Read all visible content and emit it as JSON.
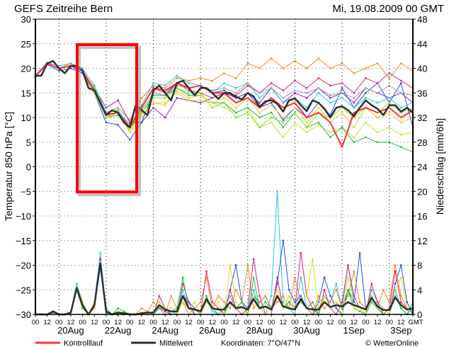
{
  "header": {
    "title": "GEFS  Zeitreihe  Bern",
    "run": "Mi, 19.08.2009  00  GMT"
  },
  "legend": {
    "control": "Kontrolllauf",
    "mean": "Mittelwert",
    "coords": "Koordinaten:  7°O/47°N",
    "credit": "© WetterOnline"
  },
  "colors": {
    "control": "#ff3030",
    "mean": "#303030",
    "highlight": "#ff0000"
  },
  "chart_data": {
    "type": "line",
    "title": "GEFS Zeitreihe Bern",
    "ylabel": "Temperatur 850 hPa [°C]",
    "y2label": "Niederschlag [mm/6h]",
    "ylim": [
      -30,
      30
    ],
    "y2lim": [
      0,
      48
    ],
    "yticks": [
      "30",
      "25",
      "20",
      "15",
      "10",
      "5",
      "0",
      "-5",
      "-10",
      "-15",
      "-20",
      "-25",
      "-30"
    ],
    "y2ticks": [
      "48",
      "44",
      "40",
      "36",
      "32",
      "28",
      "24",
      "20",
      "16",
      "12",
      "8",
      "4",
      "0"
    ],
    "x_hours_range": [
      0,
      384
    ],
    "xtick_labels": [
      "00",
      "12",
      "00",
      "12",
      "00",
      "12",
      "00",
      "12",
      "00",
      "12",
      "00",
      "12",
      "00",
      "12",
      "00",
      "12",
      "00",
      "12",
      "00",
      "12",
      "00",
      "12",
      "00",
      "12",
      "00",
      "12",
      "00",
      "12",
      "00",
      "12",
      "00",
      "12",
      "GMT"
    ],
    "date_labels": [
      {
        "label": "20Aug",
        "hour": 36
      },
      {
        "label": "22Aug",
        "hour": 84
      },
      {
        "label": "24Aug",
        "hour": 132
      },
      {
        "label": "26Aug",
        "hour": 180
      },
      {
        "label": "28Aug",
        "hour": 228
      },
      {
        "label": "30Aug",
        "hour": 276
      },
      {
        "label": "1Sep",
        "hour": 324
      },
      {
        "label": "3Sep",
        "hour": 372
      }
    ],
    "temp_step_hours": 12,
    "temp_members": [
      {
        "color": "#f08c20",
        "values": [
          18.5,
          21,
          20,
          21,
          19.5,
          16,
          11,
          12,
          9.5,
          14,
          16.5,
          16,
          18,
          17.5,
          18,
          17.5,
          19,
          18,
          21,
          20,
          22,
          20,
          21.5,
          20,
          22,
          20,
          21,
          19,
          20,
          21,
          18,
          21,
          19.5
        ]
      },
      {
        "color": "#9020d0",
        "values": [
          18.5,
          21,
          20,
          20.5,
          19,
          16,
          12,
          13.5,
          9,
          9,
          12,
          10,
          14,
          13.5,
          13,
          14,
          15,
          14,
          15,
          13,
          16,
          13,
          15,
          14,
          16,
          14,
          15,
          13,
          16,
          15,
          14,
          15,
          13
        ]
      },
      {
        "color": "#2050f0",
        "values": [
          18.3,
          20.8,
          19.5,
          20,
          19,
          15,
          9,
          8.5,
          5.5,
          9,
          15,
          14.5,
          17,
          16,
          16.5,
          15,
          15.5,
          14,
          15,
          12,
          13,
          9.5,
          12,
          10,
          13,
          10.5,
          16,
          12,
          15,
          17,
          13,
          17,
          8
        ]
      },
      {
        "color": "#c8e030",
        "values": [
          18.5,
          21,
          20,
          20.5,
          19.5,
          15,
          10,
          11.5,
          7,
          10,
          13,
          13,
          15,
          13.5,
          13.5,
          13,
          12,
          11,
          12,
          8,
          9,
          6,
          9,
          7,
          8.5,
          7,
          8,
          6,
          9,
          7,
          8,
          6.5,
          7
        ]
      },
      {
        "color": "#20c8e0",
        "values": [
          18.5,
          21.2,
          20.5,
          21,
          20,
          16.5,
          11,
          11.5,
          8.5,
          12.5,
          17,
          16.5,
          18.5,
          17,
          16.5,
          15,
          17,
          16,
          17,
          14,
          16,
          13,
          14,
          12,
          15,
          13,
          14,
          12,
          14,
          13,
          14,
          12,
          13
        ]
      },
      {
        "color": "#20c040",
        "values": [
          18.3,
          21,
          20,
          20.5,
          19.5,
          15.5,
          10,
          10.5,
          7.5,
          11,
          14.5,
          14.5,
          16,
          14.5,
          14.5,
          13,
          13,
          11,
          12,
          10,
          11,
          8,
          11,
          8,
          9,
          6,
          8,
          5,
          6,
          5,
          5,
          4,
          3
        ]
      },
      {
        "color": "#e02080",
        "values": [
          18.5,
          21,
          20,
          20.5,
          19.5,
          15.5,
          10.5,
          11,
          8,
          12,
          16,
          15,
          17,
          15.5,
          15,
          14,
          15,
          14.5,
          16.5,
          15,
          17,
          15.5,
          17.5,
          16,
          18,
          16.5,
          17,
          15,
          18,
          17,
          19,
          17.5,
          16
        ]
      },
      {
        "color": "#a0a0a0",
        "values": [
          18.5,
          21,
          20,
          20.5,
          19.5,
          15.5,
          10.5,
          11,
          8.5,
          11.5,
          15,
          14.5,
          16.5,
          16,
          16.5,
          15.5,
          16,
          15,
          17,
          15,
          16,
          14,
          15.5,
          15,
          16,
          14.5,
          15,
          14,
          16,
          15,
          16.5,
          15,
          14.5
        ]
      },
      {
        "color": "#80e020",
        "values": [
          18.5,
          21,
          20,
          20.5,
          19.5,
          16,
          10.5,
          11,
          8,
          11,
          14,
          14,
          16,
          15,
          15,
          12,
          13,
          10,
          11,
          8,
          10,
          9,
          11,
          8,
          11,
          10,
          12,
          10,
          12,
          11,
          13,
          11,
          12
        ]
      },
      {
        "color": "#e8d020",
        "values": [
          18.5,
          21,
          20,
          20.5,
          19.5,
          15.5,
          10,
          11,
          7.5,
          10.5,
          13,
          12.5,
          15.5,
          14,
          14.5,
          13,
          14,
          12,
          14,
          11,
          12.5,
          10,
          12,
          9,
          12,
          9,
          11,
          8,
          12,
          10,
          11,
          9,
          10
        ]
      }
    ],
    "temp_control": {
      "name": "Kontrolllauf",
      "values": [
        18.5,
        21,
        20,
        20.5,
        19.5,
        15.5,
        10.5,
        11,
        8,
        12,
        16,
        15.5,
        17,
        16,
        16.5,
        15,
        15,
        13,
        14,
        12,
        14,
        12,
        13,
        10,
        11,
        9,
        4,
        11,
        12,
        11,
        12,
        10,
        11.5
      ]
    },
    "temp_mean_step_hours": 6,
    "temp_mean": {
      "name": "Mittelwert",
      "values": [
        18.5,
        18.5,
        21,
        21.5,
        20,
        19,
        20.5,
        20.5,
        19.5,
        16,
        15.5,
        13,
        10.5,
        11.5,
        11,
        9,
        8,
        12.5,
        11.5,
        10.5,
        15.5,
        16.5,
        15,
        13.5,
        17,
        17.5,
        16,
        14.5,
        16,
        16,
        15,
        13.8,
        15,
        15,
        14.2,
        13.7,
        15,
        14.3,
        12.2,
        13.3,
        13.5,
        12.8,
        11.2,
        13.5,
        13.9,
        12.5,
        11.3,
        13.5,
        13,
        11.8,
        10,
        12,
        12.3,
        11.5,
        10.3,
        12,
        13.5,
        12.5,
        11.8,
        10.5,
        12.5,
        12.5,
        11.2,
        12,
        11
      ]
    },
    "precip_step_hours": 6,
    "precip_members": [
      {
        "color": "#20c8e0",
        "values": [
          0,
          0,
          0,
          0.5,
          0,
          0,
          0.5,
          5,
          2,
          0,
          2,
          10,
          0.5,
          0,
          0.5,
          0,
          0,
          0,
          0,
          0.5,
          0,
          2,
          1,
          0.5,
          0,
          4,
          1,
          0,
          0,
          3,
          0.5,
          0,
          1,
          3,
          1,
          2,
          0,
          4,
          1,
          0,
          3,
          20,
          2,
          1,
          0,
          6,
          1,
          0,
          1,
          3,
          2,
          5,
          1,
          8,
          2,
          1,
          0,
          4,
          2,
          1,
          0,
          3,
          1,
          0,
          1
        ]
      },
      {
        "color": "#2050f0",
        "values": [
          0,
          0,
          0,
          0.3,
          0,
          0,
          0.3,
          4,
          1,
          0,
          1.5,
          9,
          0.3,
          0,
          0,
          0,
          0,
          0,
          0,
          0,
          0,
          1,
          0.5,
          0,
          0,
          3,
          2,
          1,
          0,
          2,
          1,
          0,
          0,
          4,
          8,
          2,
          1,
          3,
          2,
          3,
          1,
          5,
          12,
          4,
          2,
          3,
          1,
          0,
          2,
          6,
          3,
          1,
          0,
          4,
          2,
          10,
          1,
          3,
          1,
          0,
          0,
          5,
          8,
          2,
          0
        ]
      },
      {
        "color": "#f08c20",
        "values": [
          0,
          0,
          0,
          0.5,
          0,
          0,
          0.3,
          4,
          1,
          0,
          1,
          8,
          0.5,
          0,
          0,
          0,
          0,
          0,
          1,
          0.5,
          2,
          1,
          0,
          3,
          1,
          2,
          0,
          1,
          2,
          6,
          1,
          3,
          2,
          1,
          4,
          2,
          8,
          1,
          2,
          3,
          1,
          2,
          3,
          1,
          6,
          2,
          1,
          0,
          3,
          1,
          2,
          4,
          1,
          3,
          7,
          2,
          1,
          3,
          1,
          4,
          2,
          8,
          3,
          1,
          0
        ]
      },
      {
        "color": "#e02080",
        "values": [
          0,
          0,
          0,
          0.5,
          0,
          0,
          0.3,
          4,
          1.5,
          0,
          1.5,
          9,
          0.5,
          0,
          0.3,
          0,
          0,
          0,
          0,
          0,
          0,
          3,
          1,
          0,
          0,
          5,
          2,
          0,
          0,
          7,
          2,
          1,
          0,
          4,
          1,
          0,
          1,
          9,
          3,
          0,
          0,
          6,
          1,
          2,
          1,
          10,
          3,
          1,
          0,
          4,
          1,
          0,
          2,
          8,
          3,
          1,
          0,
          5,
          2,
          0,
          1,
          7,
          2,
          1,
          0
        ]
      },
      {
        "color": "#20c040",
        "values": [
          0,
          0,
          0,
          0.3,
          0,
          0,
          0.3,
          4,
          1,
          0,
          2,
          8,
          1,
          0,
          1,
          0.5,
          0,
          0,
          0,
          0,
          0,
          1,
          1,
          0.5,
          1,
          6,
          1,
          1,
          0,
          3,
          1,
          0,
          0,
          2,
          1,
          2,
          0,
          6,
          1,
          2,
          1,
          3,
          1,
          2,
          1,
          2,
          1,
          2,
          0,
          3,
          1,
          2,
          1,
          4,
          1,
          0.5,
          0,
          2,
          1,
          0,
          0,
          4,
          1,
          0,
          2
        ]
      },
      {
        "color": "#d8e020",
        "values": [
          0,
          0,
          0,
          0.5,
          0,
          0,
          0.5,
          4.5,
          2,
          0,
          2,
          8.5,
          0.5,
          0,
          0.5,
          0,
          0,
          0,
          0,
          0,
          0,
          2,
          1,
          1,
          0,
          2,
          1,
          2,
          0,
          2,
          1,
          2,
          0,
          8,
          2,
          1,
          0,
          3,
          1,
          0,
          1,
          4,
          1,
          3,
          1,
          2,
          3,
          9,
          1,
          3,
          1,
          2,
          0,
          6,
          1,
          1,
          0,
          3,
          1,
          1,
          0,
          4,
          6,
          1,
          0
        ]
      }
    ],
    "precip_mean": {
      "name": "Mittelwert",
      "values": [
        0,
        0,
        0,
        0.5,
        0,
        0,
        0.3,
        4.3,
        1.5,
        0,
        1.5,
        8.3,
        0.5,
        0,
        0.3,
        0.2,
        0,
        0,
        0.2,
        0.3,
        0.3,
        1.5,
        0.8,
        0.5,
        0.5,
        3,
        1,
        0.8,
        0.5,
        2.5,
        1,
        0.8,
        0.8,
        2,
        1,
        1.2,
        0.8,
        2.5,
        1,
        1.3,
        0.8,
        3,
        1.3,
        1,
        0.8,
        2.5,
        1,
        0.8,
        0.8,
        2,
        1.2,
        1.5,
        1.3,
        2,
        1.5,
        1.2,
        0.8,
        2.7,
        1.3,
        0.7,
        0.7,
        2.8,
        1.5,
        0.8,
        1
      ]
    },
    "grid": true,
    "legend_position": "bottom"
  }
}
